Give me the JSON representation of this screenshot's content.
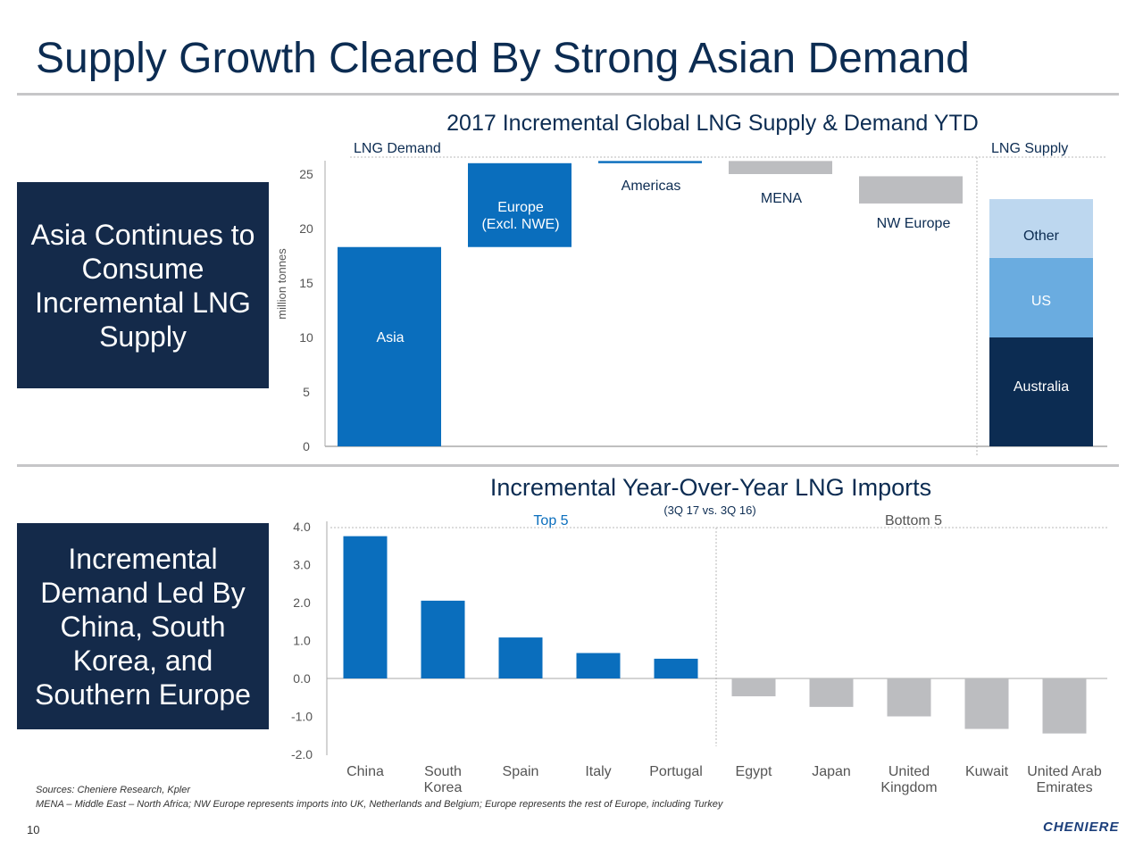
{
  "page": {
    "title": "Supply Growth Cleared By Strong Asian Demand",
    "box1_text": "Asia Continues to\nConsume\nIncremental LNG\nSupply",
    "box2_text": "Incremental\nDemand Led By\nChina, South\nKorea, and\nSouthern Europe",
    "footnote1": "Sources: Cheniere Research, Kpler",
    "footnote2": "MENA – Middle East – North Africa; NW Europe represents imports into UK, Netherlands and Belgium; Europe represents the rest of Europe, including Turkey",
    "page_number": "10",
    "logo_text": "CHENIERE"
  },
  "colors": {
    "navy": "#142a4a",
    "blue": "#0a6ebd",
    "gray": "#bcbdc0",
    "us_blue": "#6aace0",
    "other_blue": "#bdd7ef",
    "australia_navy": "#0c2c52",
    "title": "#0c2c52"
  },
  "chart_data": [
    {
      "type": "bar",
      "subtype": "waterfall",
      "title": "2017 Incremental Global LNG Supply & Demand YTD",
      "ylabel": "million tonnes",
      "ylim": [
        0,
        27
      ],
      "yticks": [
        0,
        5,
        10,
        15,
        20,
        25
      ],
      "section_labels": {
        "demand": "LNG Demand",
        "supply": "LNG Supply"
      },
      "demand": [
        {
          "label": "Asia",
          "start": 0,
          "end": 18.3,
          "color": "blue"
        },
        {
          "label": "Europe\n(Excl. NWE)",
          "start": 18.3,
          "end": 26.0,
          "color": "blue"
        },
        {
          "label": "Americas",
          "start": 26.0,
          "end": 26.2,
          "color": "blue"
        },
        {
          "label": "MENA",
          "start": 26.2,
          "end": 25.0,
          "color": "gray"
        },
        {
          "label": "NW Europe",
          "start": 24.8,
          "end": 22.3,
          "color": "gray"
        }
      ],
      "supply": [
        {
          "label": "Australia",
          "start": 0,
          "end": 10.0,
          "color": "australia_navy"
        },
        {
          "label": "US",
          "start": 10.0,
          "end": 17.3,
          "color": "us_blue"
        },
        {
          "label": "Other",
          "start": 17.3,
          "end": 22.7,
          "color": "other_blue"
        }
      ]
    },
    {
      "type": "bar",
      "title": "Incremental Year-Over-Year LNG Imports",
      "subtitle": "(3Q 17 vs. 3Q 16)",
      "group_labels": {
        "top": "Top 5",
        "bottom": "Bottom 5"
      },
      "ylim": [
        -2.0,
        4.0
      ],
      "yticks": [
        "4.0",
        "3.0",
        "2.0",
        "1.0",
        "0.0",
        "-1.0",
        "-2.0"
      ],
      "categories": [
        "China",
        "South\nKorea",
        "Spain",
        "Italy",
        "Portugal",
        "Egypt",
        "Japan",
        "United\nKingdom",
        "Kuwait",
        "United Arab\nEmirates"
      ],
      "values": [
        3.75,
        2.05,
        1.08,
        0.67,
        0.52,
        -0.47,
        -0.75,
        -1.0,
        -1.33,
        -1.45
      ]
    }
  ]
}
